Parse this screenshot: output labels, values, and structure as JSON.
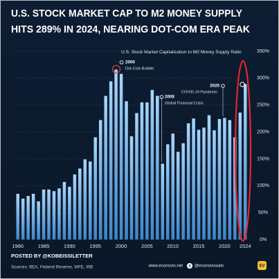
{
  "chart_data": {
    "type": "bar",
    "title": "U.S. STOCK MARKET CAP TO M2 MONEY SUPPLY",
    "title_line2": "HITS 289% IN 2024, NEARING DOT-COM ERA PEAK",
    "subtitle": "U.S. Stock Market Capitalization to M2 Money Supply Ratio",
    "categories": [
      "1980",
      null,
      null,
      null,
      null,
      "1985",
      null,
      null,
      null,
      null,
      "1990",
      null,
      null,
      null,
      null,
      "1995",
      null,
      null,
      null,
      null,
      "2000",
      null,
      null,
      null,
      null,
      "2005",
      null,
      null,
      null,
      null,
      "2010",
      null,
      null,
      null,
      null,
      "2015",
      null,
      null,
      null,
      null,
      "2020",
      null,
      null,
      null,
      "2024"
    ],
    "values": [
      85,
      76,
      81,
      85,
      71,
      93,
      93,
      90,
      95,
      107,
      98,
      121,
      132,
      149,
      145,
      190,
      222,
      267,
      294,
      316,
      308,
      257,
      192,
      235,
      255,
      255,
      278,
      267,
      141,
      177,
      197,
      163,
      179,
      216,
      225,
      204,
      208,
      231,
      203,
      224,
      226,
      222,
      190,
      236,
      289
    ],
    "color": "#8fc4f0",
    "ylim": [
      0,
      350
    ],
    "yticks": [
      {
        "value": 0,
        "label": "0%"
      },
      {
        "value": 50,
        "label": "50%"
      },
      {
        "value": 100,
        "label": "100%"
      },
      {
        "value": 150,
        "label": "150%"
      },
      {
        "value": 200,
        "label": "200%"
      },
      {
        "value": 250,
        "label": "250%"
      },
      {
        "value": 300,
        "label": "300%"
      },
      {
        "value": 350,
        "label": "350%"
      }
    ],
    "grid": true,
    "annotations": [
      {
        "year": "2000",
        "label": "Dot-Com Bubble"
      },
      {
        "year": "2008",
        "label": "Global Financial Crisis"
      },
      {
        "year": "2020",
        "label": "COVID-19 Pandemic"
      }
    ],
    "posted_by": "POSTED BY @KOBEISSILETTER",
    "sources": "Sources: BEA, Federal Reserve, WFE, WB",
    "website": "www.econovis.net",
    "handle": "@econovisuals"
  }
}
